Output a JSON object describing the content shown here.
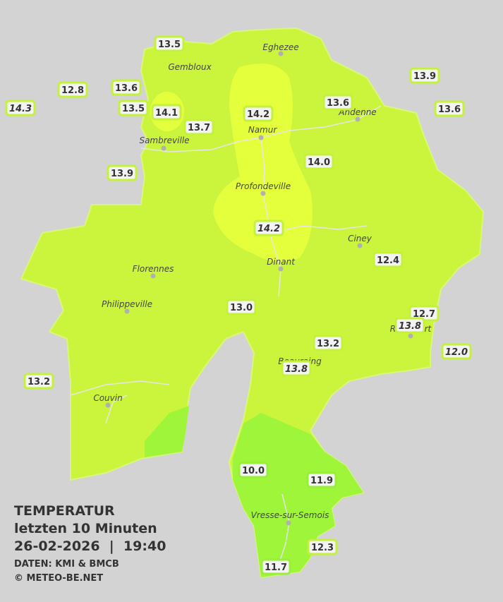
{
  "legend": {
    "title": "TEMPERATUR",
    "subtitle": "letzten 10 Minuten",
    "datetime": "26-02-2026  |  19:40",
    "source": "DATEN: KMI & BMCB",
    "copyright": "© METEO-BE.NET"
  },
  "cities": [
    "Eghezee",
    "Gembloux",
    "Andenne",
    "Namur",
    "Sambreville",
    "Profondeville",
    "Ciney",
    "Dinant",
    "Florennes",
    "Philippeville",
    "Rochefort",
    "Beauraing",
    "Couvin",
    "Vresse-sur-Semois"
  ],
  "stations": [
    {
      "value": "13.5",
      "italic": false
    },
    {
      "value": "12.8",
      "italic": false
    },
    {
      "value": "13.6",
      "italic": false
    },
    {
      "value": "14.3",
      "italic": true
    },
    {
      "value": "13.5",
      "italic": false
    },
    {
      "value": "14.1",
      "italic": false
    },
    {
      "value": "13.7",
      "italic": false
    },
    {
      "value": "14.2",
      "italic": false
    },
    {
      "value": "13.6",
      "italic": false
    },
    {
      "value": "13.9",
      "italic": false
    },
    {
      "value": "13.6",
      "italic": false
    },
    {
      "value": "13.9",
      "italic": false
    },
    {
      "value": "14.0",
      "italic": false
    },
    {
      "value": "14.2",
      "italic": true
    },
    {
      "value": "12.4",
      "italic": false
    },
    {
      "value": "13.0",
      "italic": false
    },
    {
      "value": "12.7",
      "italic": false
    },
    {
      "value": "13.8",
      "italic": true
    },
    {
      "value": "13.2",
      "italic": false
    },
    {
      "value": "12.0",
      "italic": true
    },
    {
      "value": "13.8",
      "italic": true
    },
    {
      "value": "13.2",
      "italic": false
    },
    {
      "value": "10.0",
      "italic": false
    },
    {
      "value": "11.9",
      "italic": false
    },
    {
      "value": "12.3",
      "italic": false
    },
    {
      "value": "11.7",
      "italic": false
    }
  ]
}
